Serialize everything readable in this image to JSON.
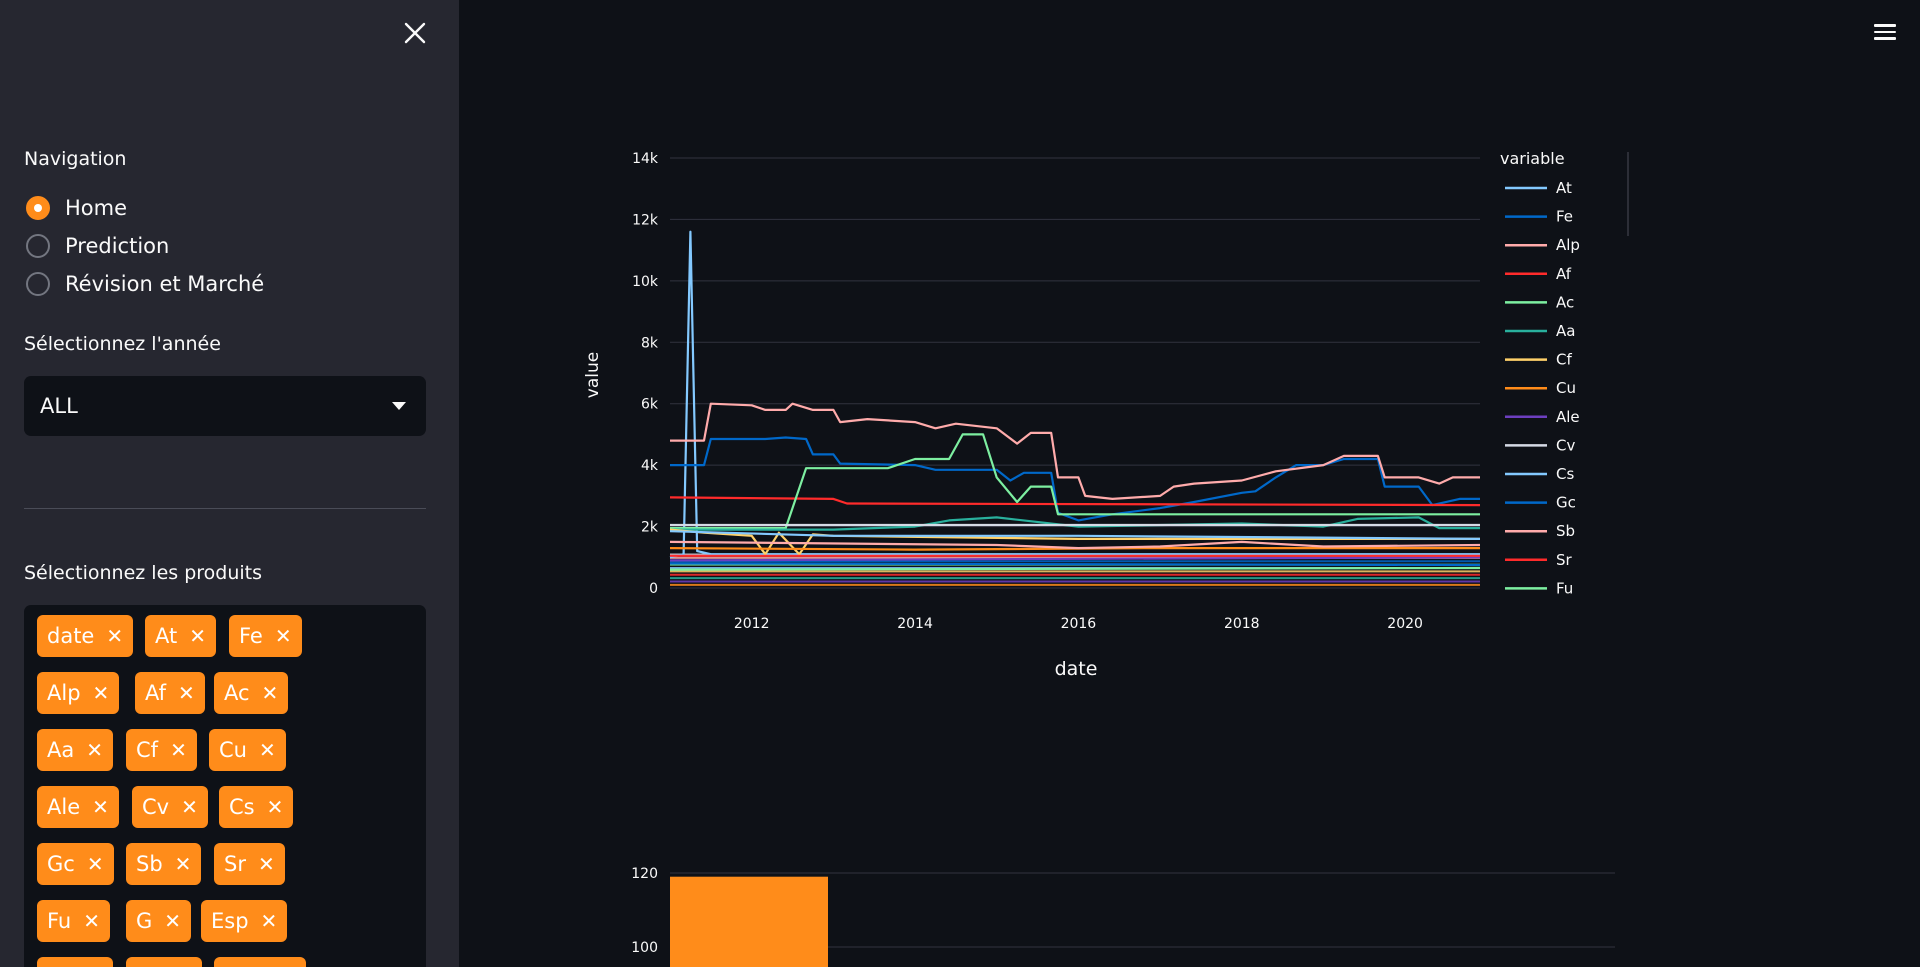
{
  "sidebar": {
    "navigation_label": "Navigation",
    "nav_items": [
      {
        "label": "Home",
        "checked": true
      },
      {
        "label": "Prediction",
        "checked": false
      },
      {
        "label": "Révision et Marché",
        "checked": false
      }
    ],
    "year_label": "Sélectionnez l'année",
    "year_value": "ALL",
    "products_label": "Sélectionnez les produits",
    "selected_products": [
      "date",
      "At",
      "Fe",
      "Alp",
      "Af",
      "Ac",
      "Aa",
      "Cf",
      "Cu",
      "Ale",
      "Cv",
      "Cs",
      "Gc",
      "Sb",
      "Sr",
      "Fu",
      "G",
      "Esp"
    ]
  },
  "colors": {
    "accent": "#ff8c1a",
    "sidebar_bg": "#262730",
    "main_bg": "#0e1117"
  },
  "icons": {
    "close": "close-icon",
    "menu": "hamburger-menu-icon"
  },
  "chart_data": [
    {
      "type": "line",
      "xlabel": "date",
      "ylabel": "value",
      "legend_title": "variable",
      "x_ticks": [
        "2012",
        "2014",
        "2016",
        "2018",
        "2020"
      ],
      "y_ticks": [
        "0",
        "2k",
        "4k",
        "6k",
        "8k",
        "10k",
        "12k",
        "14k"
      ],
      "xlim": [
        "2011-01",
        "2020-12"
      ],
      "ylim": [
        0,
        14000
      ],
      "legend_placement": "right",
      "grid": true,
      "series": [
        {
          "name": "At",
          "color": "#83c9ff",
          "points": [
            [
              "2011-01",
              1000
            ],
            [
              "2011-03",
              1100
            ],
            [
              "2011-04",
              11600
            ],
            [
              "2011-05",
              1200
            ],
            [
              "2011-07",
              1100
            ],
            [
              "2013-01",
              1100
            ],
            [
              "2016-01",
              1100
            ],
            [
              "2020-12",
              1100
            ]
          ]
        },
        {
          "name": "Fe",
          "color": "#0068c9",
          "points": [
            [
              "2011-01",
              4000
            ],
            [
              "2011-06",
              4000
            ],
            [
              "2011-07",
              4850
            ],
            [
              "2012-03",
              4850
            ],
            [
              "2012-06",
              4900
            ],
            [
              "2012-09",
              4850
            ],
            [
              "2012-10",
              4350
            ],
            [
              "2013-01",
              4350
            ],
            [
              "2013-02",
              4050
            ],
            [
              "2014-01",
              4000
            ],
            [
              "2014-04",
              3850
            ],
            [
              "2015-01",
              3850
            ],
            [
              "2015-03",
              3500
            ],
            [
              "2015-05",
              3750
            ],
            [
              "2015-09",
              3750
            ],
            [
              "2015-10",
              2450
            ],
            [
              "2016-01",
              2200
            ],
            [
              "2016-06",
              2400
            ],
            [
              "2017-01",
              2600
            ],
            [
              "2017-06",
              2800
            ],
            [
              "2018-01",
              3100
            ],
            [
              "2018-03",
              3150
            ],
            [
              "2018-06",
              3600
            ],
            [
              "2018-09",
              4000
            ],
            [
              "2019-01",
              4000
            ],
            [
              "2019-04",
              4200
            ],
            [
              "2019-09",
              4200
            ],
            [
              "2019-10",
              3300
            ],
            [
              "2020-03",
              3300
            ],
            [
              "2020-05",
              2700
            ],
            [
              "2020-09",
              2900
            ],
            [
              "2020-12",
              2900
            ]
          ]
        },
        {
          "name": "Alp",
          "color": "#ffabab",
          "points": [
            [
              "2011-01",
              4800
            ],
            [
              "2011-06",
              4800
            ],
            [
              "2011-07",
              6000
            ],
            [
              "2012-01",
              5950
            ],
            [
              "2012-03",
              5800
            ],
            [
              "2012-06",
              5800
            ],
            [
              "2012-07",
              6000
            ],
            [
              "2012-10",
              5800
            ],
            [
              "2013-01",
              5800
            ],
            [
              "2013-02",
              5400
            ],
            [
              "2013-06",
              5500
            ],
            [
              "2014-01",
              5400
            ],
            [
              "2014-04",
              5200
            ],
            [
              "2014-07",
              5350
            ],
            [
              "2015-01",
              5200
            ],
            [
              "2015-04",
              4700
            ],
            [
              "2015-06",
              5050
            ],
            [
              "2015-09",
              5050
            ],
            [
              "2015-10",
              3600
            ],
            [
              "2016-01",
              3600
            ],
            [
              "2016-02",
              3000
            ],
            [
              "2016-06",
              2900
            ],
            [
              "2017-01",
              3000
            ],
            [
              "2017-03",
              3300
            ],
            [
              "2017-06",
              3400
            ],
            [
              "2018-01",
              3500
            ],
            [
              "2018-06",
              3800
            ],
            [
              "2019-01",
              4000
            ],
            [
              "2019-04",
              4300
            ],
            [
              "2019-09",
              4300
            ],
            [
              "2019-10",
              3600
            ],
            [
              "2020-03",
              3600
            ],
            [
              "2020-06",
              3400
            ],
            [
              "2020-08",
              3600
            ],
            [
              "2020-12",
              3600
            ]
          ]
        },
        {
          "name": "Af",
          "color": "#ff2b2b",
          "points": [
            [
              "2011-01",
              2950
            ],
            [
              "2013-01",
              2900
            ],
            [
              "2013-03",
              2750
            ],
            [
              "2020-12",
              2700
            ]
          ]
        },
        {
          "name": "Ac",
          "color": "#7defa1",
          "points": [
            [
              "2011-01",
              1950
            ],
            [
              "2012-06",
              1950
            ],
            [
              "2012-09",
              3900
            ],
            [
              "2013-06",
              3900
            ],
            [
              "2013-09",
              3900
            ],
            [
              "2014-01",
              4200
            ],
            [
              "2014-06",
              4200
            ],
            [
              "2014-08",
              5000
            ],
            [
              "2014-11",
              5000
            ],
            [
              "2015-01",
              3600
            ],
            [
              "2015-04",
              2800
            ],
            [
              "2015-06",
              3300
            ],
            [
              "2015-09",
              3300
            ],
            [
              "2015-10",
              2400
            ],
            [
              "2016-01",
              2400
            ],
            [
              "2020-12",
              2400
            ]
          ]
        },
        {
          "name": "Aa",
          "color": "#29b09d",
          "points": [
            [
              "2011-01",
              1900
            ],
            [
              "2013-01",
              1900
            ],
            [
              "2014-01",
              2000
            ],
            [
              "2014-06",
              2200
            ],
            [
              "2015-01",
              2300
            ],
            [
              "2016-01",
              2000
            ],
            [
              "2018-01",
              2100
            ],
            [
              "2019-01",
              2000
            ],
            [
              "2019-06",
              2250
            ],
            [
              "2020-03",
              2300
            ],
            [
              "2020-06",
              1950
            ],
            [
              "2020-12",
              1950
            ]
          ]
        },
        {
          "name": "Cf",
          "color": "#ffd16a",
          "points": [
            [
              "2011-01",
              1900
            ],
            [
              "2011-06",
              1800
            ],
            [
              "2012-01",
              1700
            ],
            [
              "2012-03",
              1100
            ],
            [
              "2012-05",
              1800
            ],
            [
              "2012-08",
              1100
            ],
            [
              "2012-10",
              1750
            ],
            [
              "2013-01",
              1700
            ],
            [
              "2016-01",
              1600
            ],
            [
              "2020-12",
              1600
            ]
          ]
        },
        {
          "name": "Cu",
          "color": "#ff8c1a",
          "points": [
            [
              "2011-01",
              1300
            ],
            [
              "2014-01",
              1250
            ],
            [
              "2017-01",
              1300
            ],
            [
              "2020-12",
              1300
            ]
          ]
        },
        {
          "name": "Ale",
          "color": "#6d3fc0",
          "points": [
            [
              "2011-01",
              900
            ],
            [
              "2020-12",
              1000
            ]
          ]
        },
        {
          "name": "Cv",
          "color": "#d5dae5",
          "points": [
            [
              "2011-01",
              2050
            ],
            [
              "2020-12",
              2050
            ]
          ]
        },
        {
          "name": "Cs",
          "color": "#83c9ff",
          "points": [
            [
              "2011-01",
              1850
            ],
            [
              "2013-01",
              1700
            ],
            [
              "2016-01",
              1700
            ],
            [
              "2020-12",
              1600
            ]
          ]
        },
        {
          "name": "Gc",
          "color": "#0068c9",
          "points": [
            [
              "2011-01",
              800
            ],
            [
              "2020-12",
              750
            ]
          ]
        },
        {
          "name": "Sb",
          "color": "#ffabab",
          "points": [
            [
              "2011-01",
              1500
            ],
            [
              "2015-01",
              1400
            ],
            [
              "2016-01",
              1300
            ],
            [
              "2017-01",
              1350
            ],
            [
              "2018-01",
              1500
            ],
            [
              "2019-01",
              1350
            ],
            [
              "2020-12",
              1400
            ]
          ]
        },
        {
          "name": "Sr",
          "color": "#ff2b2b",
          "points": [
            [
              "2011-01",
              1050
            ],
            [
              "2020-12",
              1050
            ]
          ]
        },
        {
          "name": "Fu",
          "color": "#7defa1",
          "points": [
            [
              "2011-01",
              600
            ],
            [
              "2020-12",
              650
            ]
          ]
        }
      ]
    },
    {
      "type": "bar",
      "y_ticks": [
        "100",
        "120"
      ],
      "bars": [
        {
          "value": 119,
          "color": "#ff8c1a"
        }
      ]
    }
  ]
}
